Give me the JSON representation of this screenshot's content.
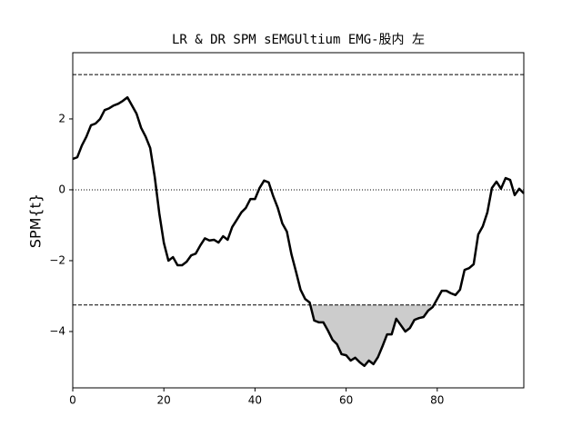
{
  "chart_data": {
    "type": "line",
    "title": "LR & DR SPM sEMGUltium EMG-股内 左",
    "ylabel": "SPM{t}",
    "x": [
      0,
      1,
      2,
      3,
      4,
      5,
      6,
      7,
      8,
      9,
      10,
      11,
      12,
      13,
      14,
      15,
      16,
      17,
      18,
      19,
      20,
      21,
      22,
      23,
      24,
      25,
      26,
      27,
      28,
      29,
      30,
      31,
      32,
      33,
      34,
      35,
      36,
      37,
      38,
      39,
      40,
      41,
      42,
      43,
      44,
      45,
      46,
      47,
      48,
      49,
      50,
      51,
      52,
      53,
      54,
      55,
      56,
      57,
      58,
      59,
      60,
      61,
      62,
      63,
      64,
      65,
      66,
      67,
      68,
      69,
      70,
      71,
      72,
      73,
      74,
      75,
      76,
      77,
      78,
      79,
      80,
      81,
      82,
      83,
      84,
      85,
      86,
      87,
      88,
      89,
      90,
      91,
      92,
      93,
      94,
      95,
      96,
      97,
      98,
      99
    ],
    "series": [
      {
        "color": "#000000",
        "values": [
          0.87,
          0.92,
          1.25,
          1.5,
          1.82,
          1.87,
          2.0,
          2.25,
          2.3,
          2.38,
          2.43,
          2.51,
          2.61,
          2.38,
          2.15,
          1.75,
          1.5,
          1.18,
          0.36,
          -0.67,
          -1.5,
          -2.0,
          -1.9,
          -2.13,
          -2.13,
          -2.03,
          -1.85,
          -1.8,
          -1.57,
          -1.37,
          -1.43,
          -1.41,
          -1.49,
          -1.31,
          -1.41,
          -1.05,
          -0.85,
          -0.64,
          -0.51,
          -0.26,
          -0.26,
          0.05,
          0.26,
          0.21,
          -0.18,
          -0.51,
          -0.95,
          -1.18,
          -1.82,
          -2.31,
          -2.82,
          -3.08,
          -3.18,
          -3.69,
          -3.74,
          -3.74,
          -3.97,
          -4.23,
          -4.36,
          -4.64,
          -4.67,
          -4.82,
          -4.74,
          -4.87,
          -4.97,
          -4.82,
          -4.92,
          -4.72,
          -4.41,
          -4.08,
          -4.08,
          -3.64,
          -3.82,
          -4.0,
          -3.9,
          -3.67,
          -3.62,
          -3.59,
          -3.41,
          -3.31,
          -3.08,
          -2.85,
          -2.85,
          -2.92,
          -2.97,
          -2.82,
          -2.26,
          -2.21,
          -2.1,
          -1.26,
          -1.03,
          -0.64,
          0.05,
          0.23,
          0.03,
          0.33,
          0.28,
          -0.15,
          0.03,
          -0.1
        ]
      }
    ],
    "thresholds": [
      3.25,
      -3.25
    ],
    "reference_line": 0,
    "cluster_fill_color": "#cccccc",
    "xlim": [
      0,
      99
    ],
    "xticks": [
      0,
      20,
      40,
      60,
      80
    ],
    "ylim": [
      -5.59,
      3.87
    ],
    "yticks": [
      {
        "value": -4,
        "label": "−4"
      },
      {
        "value": -2,
        "label": "−2"
      },
      0,
      2
    ]
  }
}
